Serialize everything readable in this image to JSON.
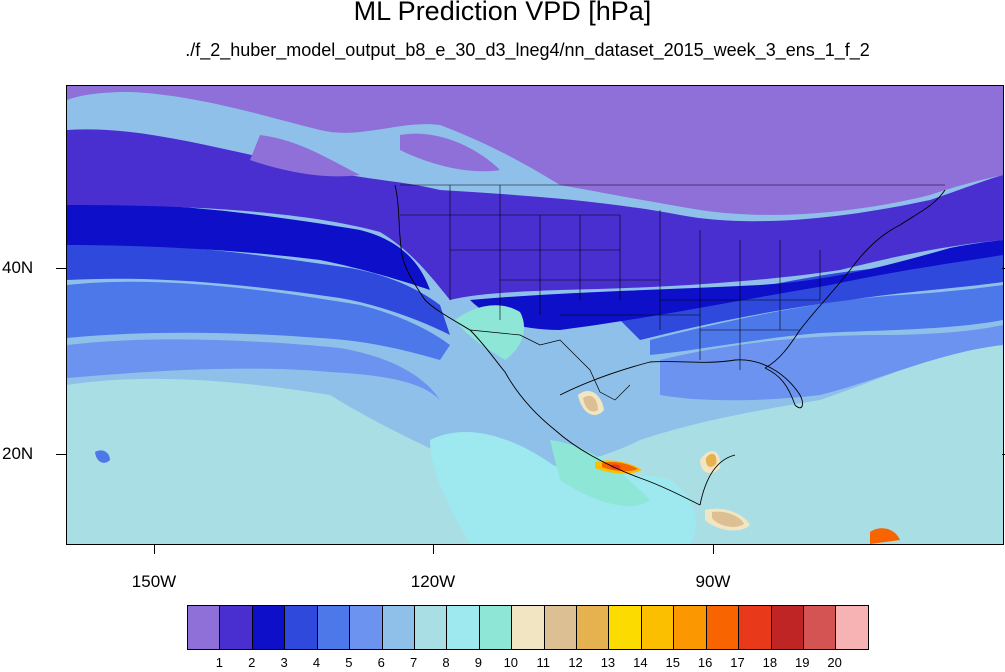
{
  "title": "ML Prediction VPD [hPa]",
  "subtitle": "./f_2_huber_model_output_b8_e_30_d3_lneg4/nn_dataset_2015_week_3_ens_1_f_2",
  "lat_labels": [
    "40N",
    "20N"
  ],
  "lon_labels": [
    "150W",
    "120W",
    "90W"
  ],
  "colorbar": {
    "labels": [
      "1",
      "2",
      "3",
      "4",
      "5",
      "6",
      "7",
      "8",
      "9",
      "10",
      "11",
      "12",
      "13",
      "14",
      "15",
      "16",
      "17",
      "18",
      "19",
      "20"
    ],
    "colors": [
      "#8f6fd8",
      "#4a2fd0",
      "#0e10c9",
      "#2f49dd",
      "#4c78ea",
      "#6b93ef",
      "#8fc0ea",
      "#a9dfe4",
      "#9ee8f0",
      "#8de6d6",
      "#f2e5c1",
      "#dcc093",
      "#e5b24f",
      "#fcdb00",
      "#fbbf00",
      "#fb9700",
      "#f86400",
      "#e83a1b",
      "#bf2525",
      "#d45353",
      "#f7b3b3"
    ]
  },
  "map": {
    "colors": {
      "lvl1": "#8f6fd8",
      "lvl2": "#4a2fd0",
      "lvl3": "#0e10c9",
      "lvl4": "#2f49dd",
      "lvl5": "#4c78ea",
      "lvl6": "#6b93ef",
      "lvl7": "#8fc0ea",
      "lvl8": "#a9dfe4",
      "lvl9": "#9ee8f0",
      "lvl10": "#8de6d6",
      "lvl11": "#f2e5c1",
      "lvl12": "#dcc093",
      "lvl13": "#e5b24f",
      "lvl15": "#fbbf00",
      "lvl17": "#f86400",
      "lvl18": "#e83a1b",
      "outline": "#000000"
    }
  }
}
